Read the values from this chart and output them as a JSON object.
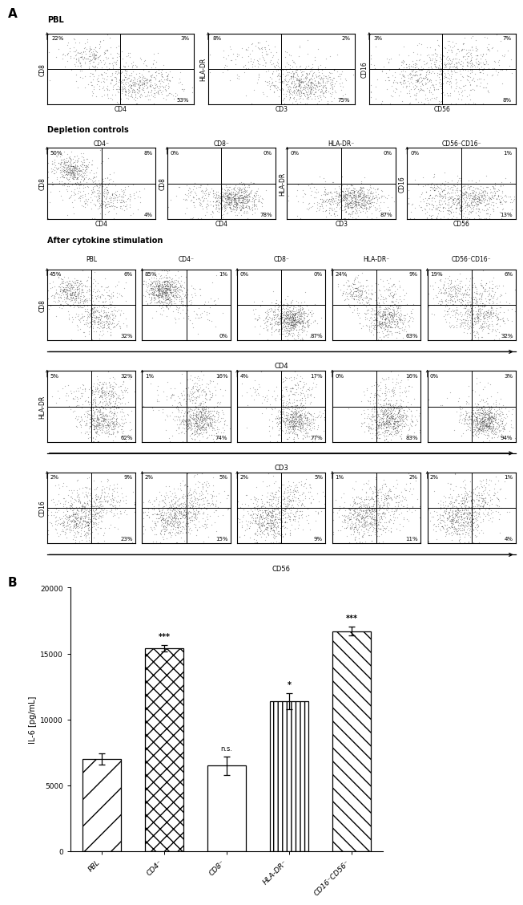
{
  "pbl_section_title": "PBL",
  "depletion_title": "Depletion controls",
  "stim_title": "After cytokine stimulation",
  "pbl_plots": [
    {
      "xlabel": "CD4",
      "ylabel": "CD8",
      "q_ul": "22%",
      "q_ur": "3%",
      "q_lr": "53%"
    },
    {
      "xlabel": "CD3",
      "ylabel": "HLA-DR",
      "q_ul": "8%",
      "q_ur": "2%",
      "q_lr": "75%"
    },
    {
      "xlabel": "CD56",
      "ylabel": "CD16",
      "q_ul": "3%",
      "q_ur": "7%",
      "q_lr": "8%"
    }
  ],
  "depletion_plots": [
    {
      "title": "CD4⁻",
      "xlabel": "CD4",
      "ylabel": "CD8",
      "q_ul": "50%",
      "q_ur": "8%",
      "q_lr": "4%"
    },
    {
      "title": "CD8⁻",
      "xlabel": "CD4",
      "ylabel": "CD8",
      "q_ul": "0%",
      "q_ur": "0%",
      "q_lr": "78%"
    },
    {
      "title": "HLA-DR⁻",
      "xlabel": "CD3",
      "ylabel": "HLA-DR",
      "q_ul": "0%",
      "q_ur": "0%",
      "q_lr": "87%"
    },
    {
      "title": "CD56⁻CD16⁻",
      "xlabel": "CD56",
      "ylabel": "CD16",
      "q_ul": "0%",
      "q_ur": "1%",
      "q_lr": "13%"
    }
  ],
  "stim_col_titles": [
    "PBL",
    "CD4⁻",
    "CD8⁻",
    "HLA-DR⁻",
    "CD56⁻CD16⁻"
  ],
  "stim_row1_ylabel": "CD8",
  "stim_row1_xlabel": "CD4",
  "stim_row1_plots": [
    {
      "q_ul": "45%",
      "q_ur": "6%",
      "q_lr": "32%"
    },
    {
      "q_ul": "85%",
      "q_ur": "1%",
      "q_lr": "0%"
    },
    {
      "q_ul": "0%",
      "q_ur": "0%",
      "q_lr": "87%"
    },
    {
      "q_ul": "24%",
      "q_ur": "9%",
      "q_lr": "63%"
    },
    {
      "q_ul": "19%",
      "q_ur": "6%",
      "q_lr": "32%"
    }
  ],
  "stim_row2_ylabel": "HLA-DR",
  "stim_row2_xlabel": "CD3",
  "stim_row2_plots": [
    {
      "q_ul": "5%",
      "q_ur": "32%",
      "q_lr": "62%"
    },
    {
      "q_ul": "1%",
      "q_ur": "16%",
      "q_lr": "74%"
    },
    {
      "q_ul": "4%",
      "q_ur": "17%",
      "q_lr": "77%"
    },
    {
      "q_ul": "0%",
      "q_ur": "16%",
      "q_lr": "83%"
    },
    {
      "q_ul": "0%",
      "q_ur": "3%",
      "q_lr": "94%"
    }
  ],
  "stim_row3_ylabel": "CD16",
  "stim_row3_xlabel": "CD56",
  "stim_row3_plots": [
    {
      "q_ul": "2%",
      "q_ur": "9%",
      "q_lr": "23%"
    },
    {
      "q_ul": "2%",
      "q_ur": "5%",
      "q_lr": "15%"
    },
    {
      "q_ul": "2%",
      "q_ur": "5%",
      "q_lr": "9%"
    },
    {
      "q_ul": "1%",
      "q_ur": "2%",
      "q_lr": "11%"
    },
    {
      "q_ul": "2%",
      "q_ur": "1%",
      "q_lr": "4%"
    }
  ],
  "bar_values": [
    7000,
    15400,
    6500,
    11400,
    16700
  ],
  "bar_errors": [
    400,
    250,
    700,
    600,
    350
  ],
  "bar_labels": [
    "PBL",
    "CD4⁻",
    "CD8⁻",
    "HLA-DR⁻",
    "CD16⁻CD56⁻"
  ],
  "bar_significance": [
    "",
    "***",
    "n.s.",
    "*",
    "***"
  ],
  "ylabel_bar": "IL-6 [pg/mL]",
  "ylim_bar": [
    0,
    20000
  ],
  "scatter_color": "#1a1a1a",
  "scatter_alpha": 0.35,
  "scatter_size": 0.8
}
